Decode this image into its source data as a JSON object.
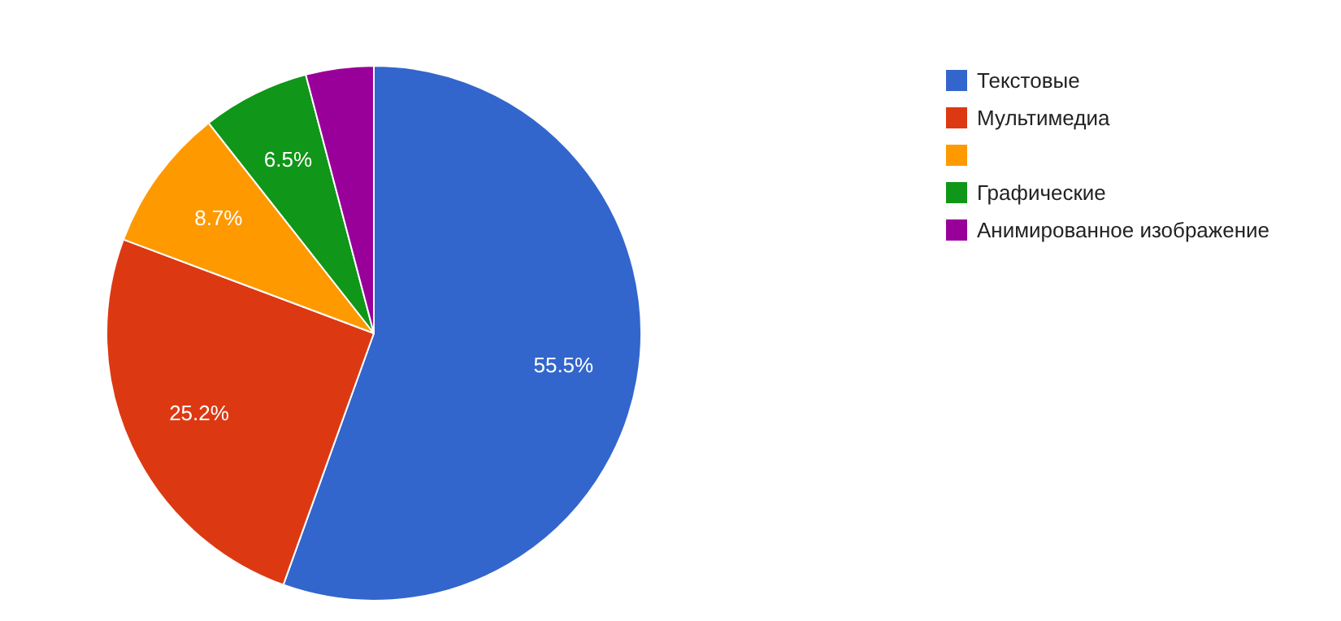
{
  "chart_data": {
    "type": "pie",
    "categories": [
      "Текстовые",
      "Мультимедиа",
      null,
      "Графические",
      "Анимированное изображение"
    ],
    "values": [
      55.5,
      25.2,
      8.7,
      6.5,
      4.1
    ],
    "colors": [
      "#3366cc",
      "#dc3912",
      "#ff9900",
      "#109618",
      "#990099"
    ],
    "value_labels": [
      "55.5%",
      "25.2%",
      "8.7%",
      "6.5%",
      null
    ],
    "legend": "top right"
  }
}
